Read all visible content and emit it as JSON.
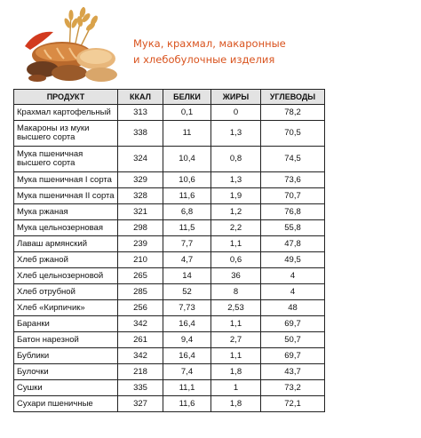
{
  "title": {
    "line1": "Мука, крахмал, макаронные",
    "line2": "и хлебобулочные изделия"
  },
  "illustration": {
    "icon": "bread-wheat-illustration"
  },
  "table": {
    "headers": [
      "ПРОДУКТ",
      "ККАЛ",
      "БЕЛКИ",
      "ЖИРЫ",
      "УГЛЕВОДЫ"
    ],
    "rows": [
      {
        "product": "Крахмал картофельный",
        "kcal": "313",
        "protein": "0,1",
        "fat": "0",
        "carbs": "78,2"
      },
      {
        "product": "Макароны из муки высшего сорта",
        "kcal": "338",
        "protein": "11",
        "fat": "1,3",
        "carbs": "70,5"
      },
      {
        "product": "Мука пшеничная высшего сорта",
        "kcal": "324",
        "protein": "10,4",
        "fat": "0,8",
        "carbs": "74,5"
      },
      {
        "product": "Мука пшеничная I сорта",
        "kcal": "329",
        "protein": "10,6",
        "fat": "1,3",
        "carbs": "73,6"
      },
      {
        "product": "Мука пшеничная II сорта",
        "kcal": "328",
        "protein": "11,6",
        "fat": "1,9",
        "carbs": "70,7"
      },
      {
        "product": "Мука ржаная",
        "kcal": "321",
        "protein": "6,8",
        "fat": "1,2",
        "carbs": "76,8"
      },
      {
        "product": "Мука цельнозерновая",
        "kcal": "298",
        "protein": "11,5",
        "fat": "2,2",
        "carbs": "55,8"
      },
      {
        "product": "Лаваш армянский",
        "kcal": "239",
        "protein": "7,7",
        "fat": "1,1",
        "carbs": "47,8"
      },
      {
        "product": "Хлеб ржаной",
        "kcal": "210",
        "protein": "4,7",
        "fat": "0,6",
        "carbs": "49,5"
      },
      {
        "product": "Хлеб цельнозерновой",
        "kcal": "265",
        "protein": "14",
        "fat": "36",
        "carbs": "4"
      },
      {
        "product": "Хлеб отрубной",
        "kcal": "285",
        "protein": "52",
        "fat": "8",
        "carbs": "4"
      },
      {
        "product": "Хлеб «Кирпичик»",
        "kcal": "256",
        "protein": "7,73",
        "fat": "2,53",
        "carbs": "48"
      },
      {
        "product": "Баранки",
        "kcal": "342",
        "protein": "16,4",
        "fat": "1,1",
        "carbs": "69,7"
      },
      {
        "product": "Батон нарезной",
        "kcal": "261",
        "protein": "9,4",
        "fat": "2,7",
        "carbs": "50,7"
      },
      {
        "product": "Бублики",
        "kcal": "342",
        "protein": "16,4",
        "fat": "1,1",
        "carbs": "69,7"
      },
      {
        "product": "Булочки",
        "kcal": "218",
        "protein": "7,4",
        "fat": "1,8",
        "carbs": "43,7"
      },
      {
        "product": "Сушки",
        "kcal": "335",
        "protein": "11,1",
        "fat": "1",
        "carbs": "73,2"
      },
      {
        "product": "Сухари пшеничные",
        "kcal": "327",
        "protein": "11,6",
        "fat": "1,8",
        "carbs": "72,1"
      }
    ]
  }
}
